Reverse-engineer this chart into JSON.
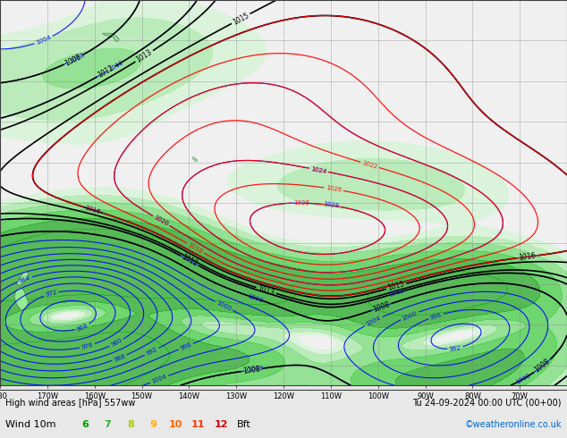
{
  "title_left": "High wind areas [hPa] 557ww",
  "title_right": "Tu 24-09-2024 00:00 UTC (00+00)",
  "wind_label": "Wind 10m",
  "bft_nums": [
    "6",
    "7",
    "8",
    "9",
    "10",
    "11",
    "12"
  ],
  "bft_colors": [
    "#009900",
    "#33aa33",
    "#aacc00",
    "#ffaa00",
    "#ff6600",
    "#ff3300",
    "#cc0000"
  ],
  "copyright": "©weatheronline.co.uk",
  "background_color": "#e8e8e8",
  "map_background": "#f0f0f0",
  "grid_color": "#808080",
  "isobar_blue": "#0000ff",
  "isobar_black": "#000000",
  "isobar_red": "#ff0000",
  "land_color": "#90ee90",
  "wind_fill_colors": [
    "#d4f5d4",
    "#aaeaaa",
    "#77dd77",
    "#44cc44",
    "#22aa22"
  ],
  "wind_levels": [
    3.5,
    5,
    7,
    10,
    14,
    20
  ],
  "lon_min": -180,
  "lon_max": -60,
  "lat_min": -65,
  "lat_max": 30,
  "figsize": [
    6.34,
    4.9
  ],
  "dpi": 100
}
